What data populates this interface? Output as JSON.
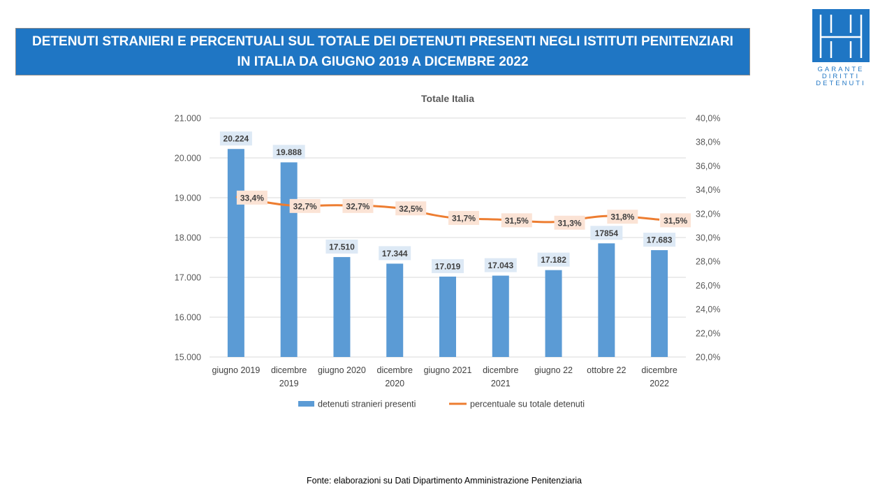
{
  "header": {
    "title_line1": "DETENUTI STRANIERI E PERCENTUALI SUL TOTALE DEI DETENUTI PRESENTI NEGLI ISTITUTI PENITENZIARI",
    "title_line2": "IN ITALIA DA GIUGNO 2019 A DICEMBRE 2022"
  },
  "logo": {
    "lines": [
      "GARANTE",
      "DIRITTI",
      "DETENUTI"
    ],
    "color": "#1f76c4"
  },
  "source": "Fonte: elaborazioni su Dati Dipartimento  Amministrazione  Penitenziaria",
  "colors": {
    "banner": "#1f76c4",
    "bar": "#5b9bd5",
    "line": "#ed7d31",
    "bar_label_bg": "#dde9f5",
    "line_label_bg": "#fbe3d5"
  },
  "chart_data": {
    "type": "bar+line",
    "title": "Totale Italia",
    "categories": [
      [
        "giugno 2019"
      ],
      [
        "dicembre",
        "2019"
      ],
      [
        "giugno 2020"
      ],
      [
        "dicembre",
        "2020"
      ],
      [
        "giugno 2021"
      ],
      [
        "dicembre",
        "2021"
      ],
      [
        "giugno 22"
      ],
      [
        "ottobre 22"
      ],
      [
        "dicembre",
        "2022"
      ]
    ],
    "series": [
      {
        "name": "detenuti stranieri presenti",
        "type": "bar",
        "axis": "left",
        "values": [
          20224,
          19888,
          17510,
          17344,
          17019,
          17043,
          17182,
          17854,
          17683
        ],
        "labels": [
          "20.224",
          "19.888",
          "17.510",
          "17.344",
          "17.019",
          "17.043",
          "17.182",
          "17854",
          "17.683"
        ]
      },
      {
        "name": "percentuale su totale detenuti",
        "type": "line",
        "axis": "right",
        "values": [
          33.4,
          32.7,
          32.7,
          32.5,
          31.7,
          31.5,
          31.3,
          31.8,
          31.5
        ],
        "labels": [
          "33,4%",
          "32,7%",
          "32,7%",
          "32,5%",
          "31,7%",
          "31,5%",
          "31,3%",
          "31,8%",
          "31,5%"
        ]
      }
    ],
    "y_left": {
      "min": 15000,
      "max": 21000,
      "step": 1000,
      "ticks": [
        "15.000",
        "16.000",
        "17.000",
        "18.000",
        "19.000",
        "20.000",
        "21.000"
      ]
    },
    "y_right": {
      "min": 20,
      "max": 40,
      "step": 2,
      "ticks": [
        "20,0%",
        "22,0%",
        "24,0%",
        "26,0%",
        "28,0%",
        "30,0%",
        "32,0%",
        "34,0%",
        "36,0%",
        "38,0%",
        "40,0%"
      ]
    },
    "grid": true,
    "legend_position": "bottom"
  }
}
